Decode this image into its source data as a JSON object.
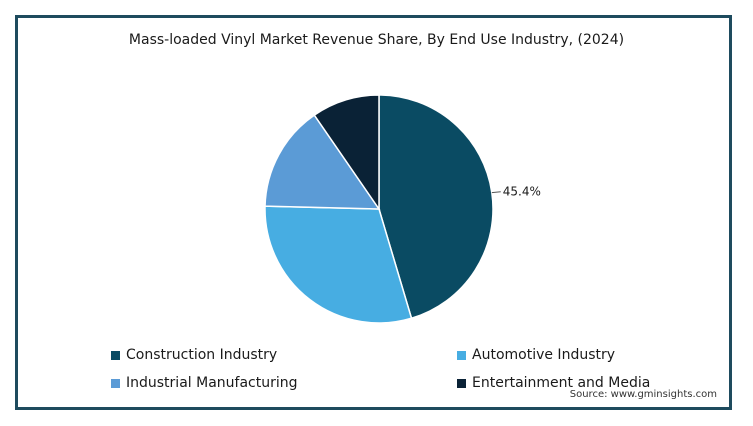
{
  "chart_data": {
    "type": "pie",
    "title": "Mass-loaded Vinyl Market Revenue Share, By End Use Industry, (2024)",
    "categories": [
      "Construction Industry",
      "Automotive Industry",
      "Industrial Manufacturing",
      "Entertainment and Media"
    ],
    "values": [
      45.4,
      30.0,
      15.0,
      9.6
    ],
    "colors": [
      "#0a4b63",
      "#47ade2",
      "#5b9bd6",
      "#0a2236"
    ],
    "data_labels": [
      "45.4%",
      "",
      "",
      ""
    ],
    "legend_position": "bottom"
  },
  "source": "Source: www.gminsights.com"
}
